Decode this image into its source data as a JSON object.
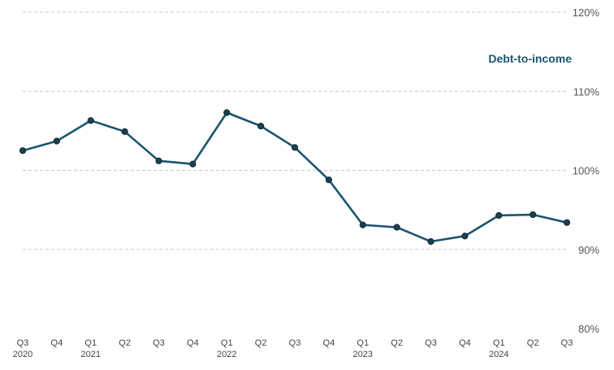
{
  "chart_data": {
    "type": "line",
    "title": "",
    "xlabel": "",
    "ylabel": "",
    "ylim": [
      80,
      120
    ],
    "y_ticks": [
      80,
      90,
      100,
      110,
      120
    ],
    "y_tick_labels": [
      "80%",
      "90%",
      "100%",
      "110%",
      "120%"
    ],
    "x": [
      "Q3 2020",
      "Q4 2020",
      "Q1 2021",
      "Q2 2021",
      "Q3 2021",
      "Q4 2021",
      "Q1 2022",
      "Q2 2022",
      "Q3 2022",
      "Q4 2022",
      "Q1 2023",
      "Q2 2023",
      "Q3 2023",
      "Q4 2023",
      "Q1 2024",
      "Q2 2024",
      "Q3 2024"
    ],
    "x_tick_labels": [
      "Q3",
      "Q4",
      "Q1",
      "Q2",
      "Q3",
      "Q4",
      "Q1",
      "Q2",
      "Q3",
      "Q4",
      "Q1",
      "Q2",
      "Q3",
      "Q4",
      "Q1",
      "Q2",
      "Q3"
    ],
    "year_labels": [
      {
        "index": 0,
        "label": "2020"
      },
      {
        "index": 2,
        "label": "2021"
      },
      {
        "index": 6,
        "label": "2022"
      },
      {
        "index": 10,
        "label": "2023"
      },
      {
        "index": 14,
        "label": "2024"
      }
    ],
    "series": [
      {
        "name": "Debt-to-income",
        "color": "#1a5570",
        "values": [
          102.5,
          103.7,
          106.3,
          104.9,
          101.2,
          100.8,
          107.3,
          105.6,
          102.9,
          98.8,
          93.1,
          92.8,
          91.0,
          91.7,
          94.3,
          94.4,
          93.4
        ]
      }
    ],
    "grid": true,
    "grid_style": "dashed",
    "y_axis_side": "right",
    "legend": "series label inside plot, top-right"
  }
}
